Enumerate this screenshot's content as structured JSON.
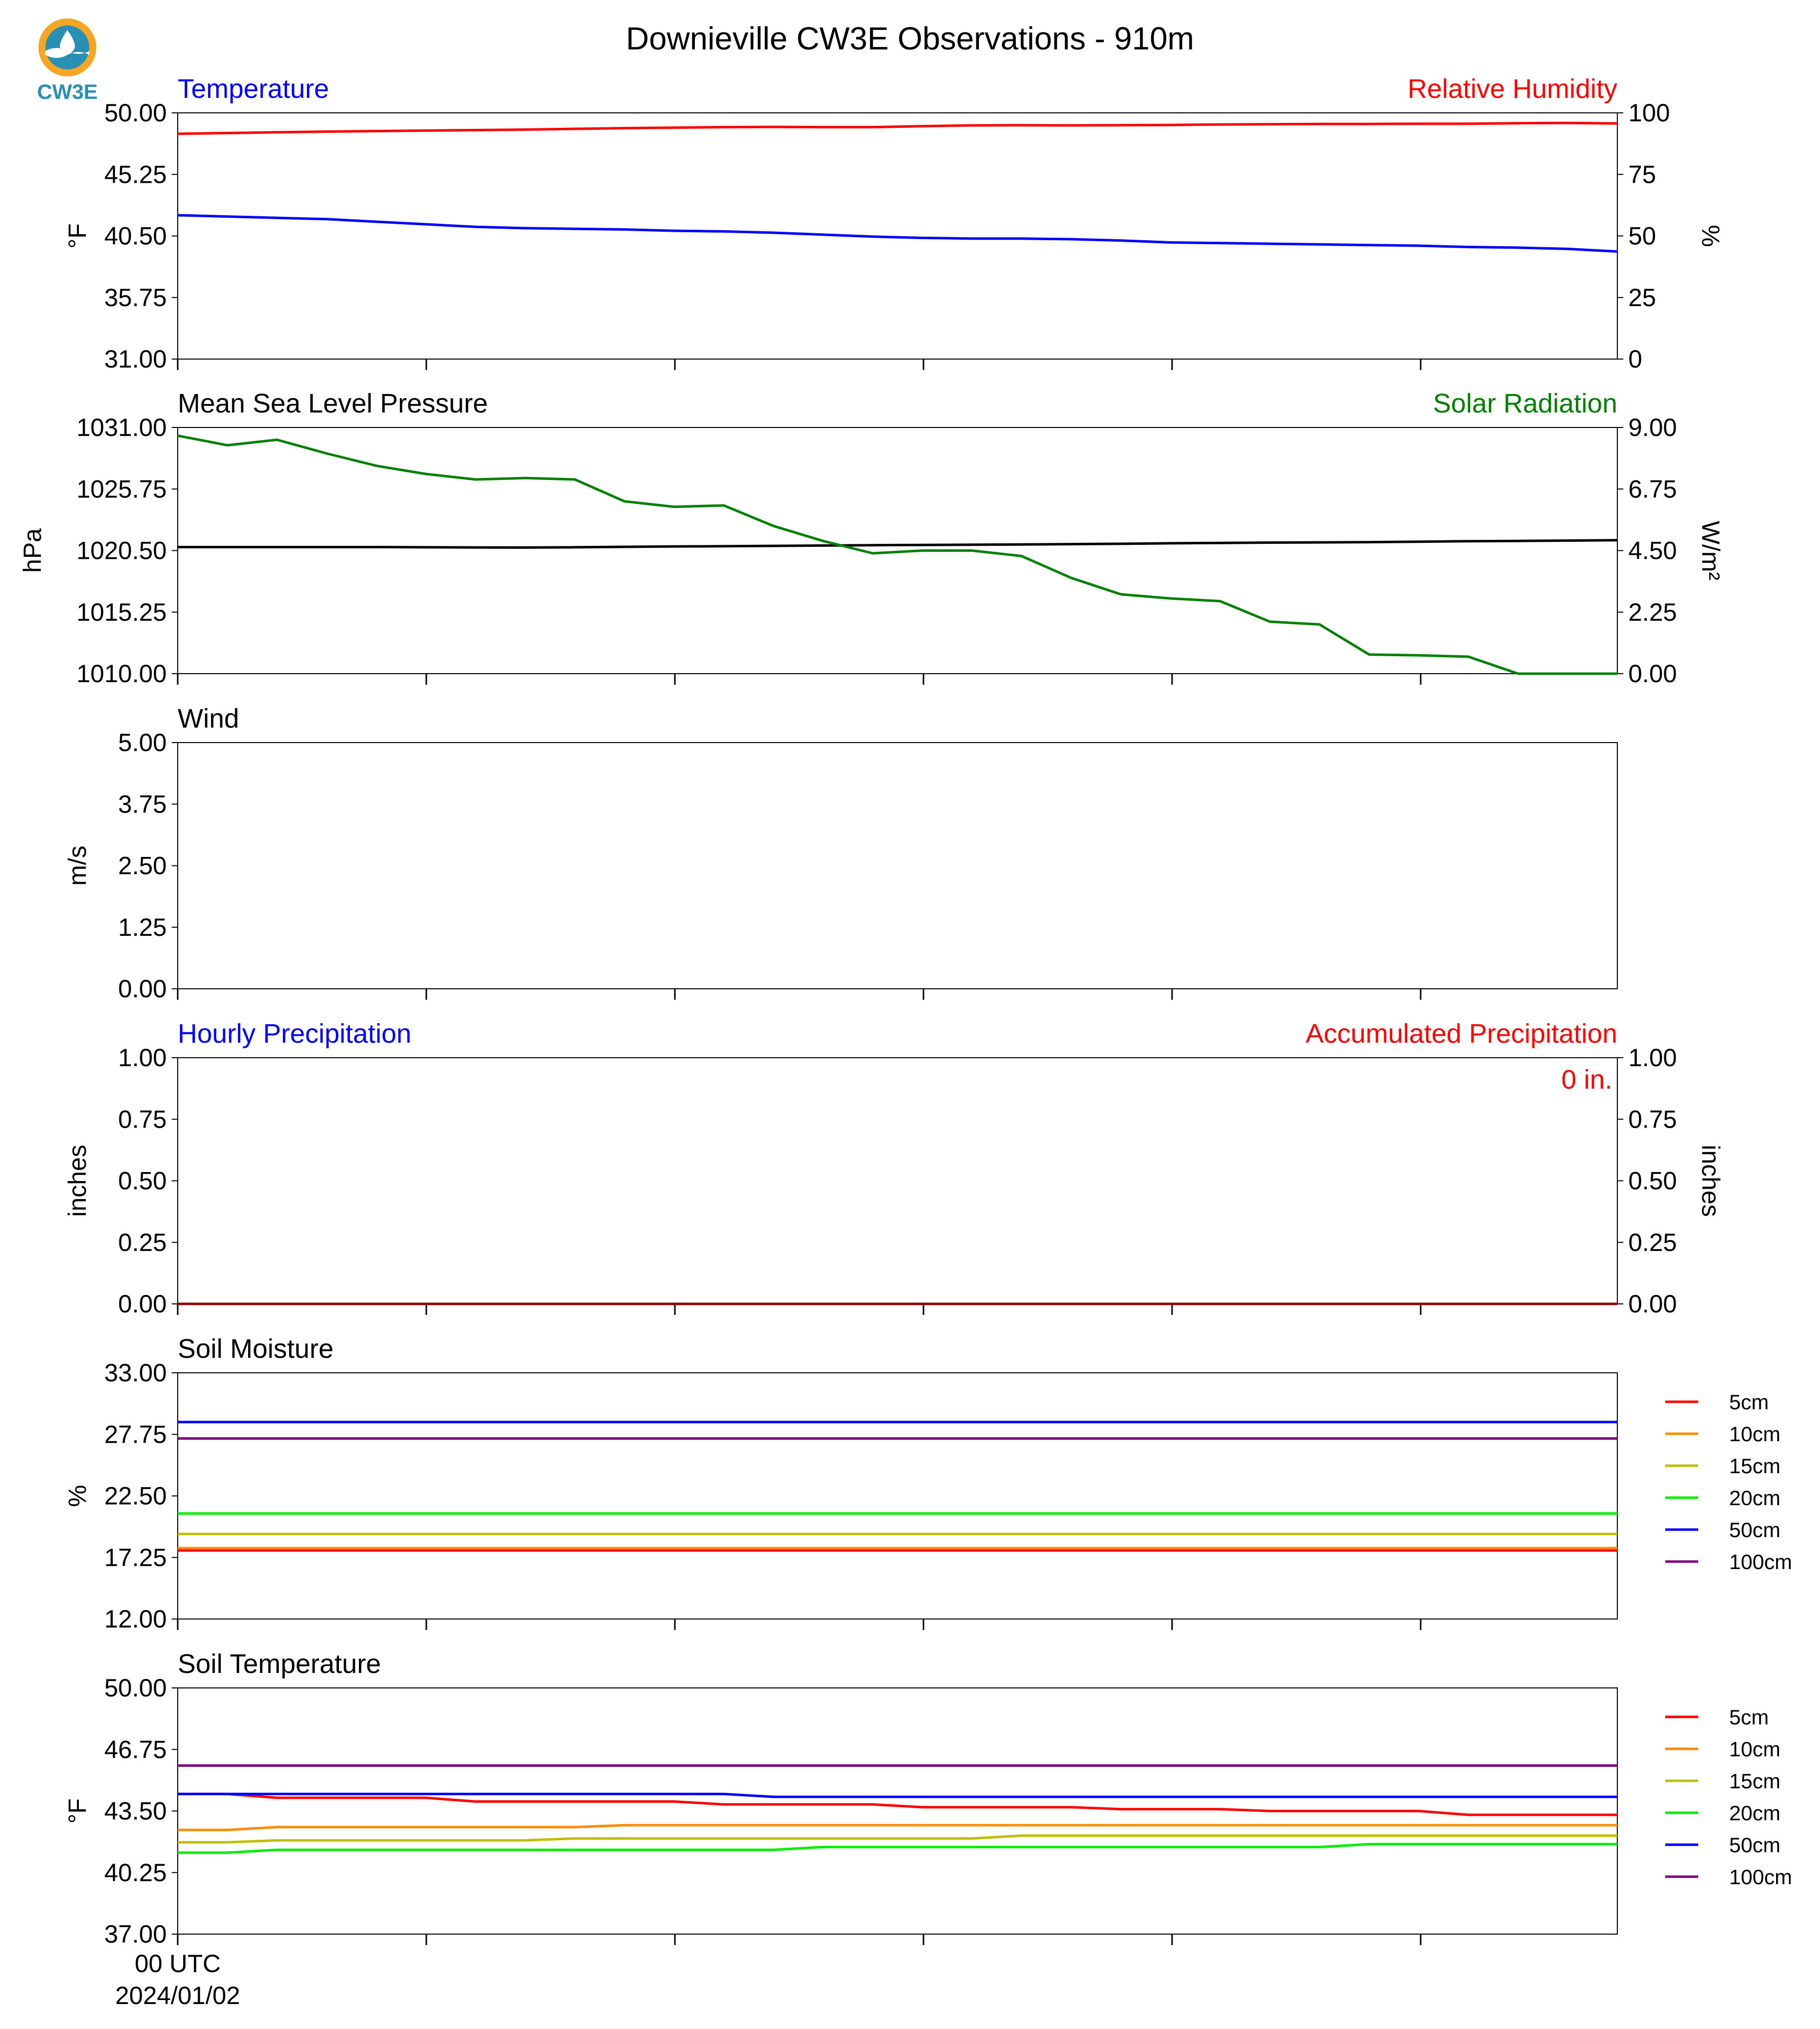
{
  "title": "Downieville CW3E Observations - 910m",
  "logo": {
    "text": "CW3E",
    "color": "#2a8fb5",
    "accent": "#f5a623"
  },
  "x_axis": {
    "tick_label_line1": "00 UTC",
    "tick_label_line2": "2024/01/02",
    "n_ticks": 6
  },
  "chart_data": [
    {
      "id": "temp-rh",
      "type": "line",
      "title_left": "Temperature",
      "title_left_color": "#0000ff",
      "title_right": "Relative Humidity",
      "title_right_color": "#ff0000",
      "ylabel": "°F",
      "ylabel_right": "%",
      "ylim": [
        31,
        50
      ],
      "yticks": [
        "31.00",
        "35.75",
        "40.50",
        "45.25",
        "50.00"
      ],
      "ylim_right": [
        0,
        100
      ],
      "yticks_right": [
        "0",
        "25",
        "50",
        "75",
        "100"
      ],
      "x": [
        0,
        1,
        2,
        3,
        4,
        5,
        6,
        7,
        8,
        9,
        10,
        11,
        12,
        13,
        14,
        15,
        16,
        17,
        18,
        19,
        20,
        21,
        22,
        23,
        24,
        25,
        26,
        27,
        28,
        29
      ],
      "series": [
        {
          "axis": "left",
          "color": "#0000ff",
          "values": [
            42.1,
            42.0,
            41.9,
            41.8,
            41.6,
            41.4,
            41.2,
            41.1,
            41.05,
            41.0,
            40.9,
            40.85,
            40.75,
            40.6,
            40.45,
            40.35,
            40.3,
            40.3,
            40.25,
            40.15,
            40.0,
            39.95,
            39.9,
            39.85,
            39.8,
            39.75,
            39.65,
            39.6,
            39.5,
            39.3
          ]
        },
        {
          "axis": "right",
          "color": "#ff0000",
          "values": [
            91.5,
            91.8,
            92.1,
            92.4,
            92.6,
            92.8,
            93.0,
            93.2,
            93.5,
            93.8,
            94.0,
            94.2,
            94.3,
            94.2,
            94.2,
            94.6,
            94.9,
            95.0,
            94.9,
            95.0,
            95.1,
            95.3,
            95.4,
            95.5,
            95.5,
            95.6,
            95.6,
            95.8,
            95.9,
            95.7
          ]
        }
      ]
    },
    {
      "id": "pressure-solar",
      "type": "line",
      "title_left": "Mean Sea Level Pressure",
      "title_left_color": "#000000",
      "title_right": "Solar Radiation",
      "title_right_color": "#008000",
      "ylabel": "hPa",
      "ylabel_right": "W/m²",
      "ylim": [
        1010,
        1031
      ],
      "yticks": [
        "1010.00",
        "1015.25",
        "1020.50",
        "1025.75",
        "1031.00"
      ],
      "ylim_right": [
        0,
        9
      ],
      "yticks_right": [
        "0.00",
        "2.25",
        "4.50",
        "6.75",
        "9.00"
      ],
      "x": [
        0,
        1,
        2,
        3,
        4,
        5,
        6,
        7,
        8,
        9,
        10,
        11,
        12,
        13,
        14,
        15,
        16,
        17,
        18,
        19,
        20,
        21,
        22,
        23,
        24,
        25,
        26,
        27,
        28,
        29
      ],
      "series": [
        {
          "axis": "left",
          "color": "#000000",
          "values": [
            1020.8,
            1020.8,
            1020.8,
            1020.8,
            1020.8,
            1020.78,
            1020.77,
            1020.76,
            1020.78,
            1020.82,
            1020.85,
            1020.87,
            1020.9,
            1020.93,
            1020.96,
            1020.98,
            1021.0,
            1021.02,
            1021.05,
            1021.08,
            1021.12,
            1021.15,
            1021.18,
            1021.2,
            1021.22,
            1021.26,
            1021.3,
            1021.32,
            1021.35,
            1021.38
          ]
        },
        {
          "axis": "right",
          "color": "#008000",
          "values": [
            8.7,
            8.35,
            8.55,
            8.05,
            7.6,
            7.3,
            7.1,
            7.15,
            7.1,
            6.3,
            6.1,
            6.15,
            5.4,
            4.85,
            4.4,
            4.5,
            4.5,
            4.3,
            3.5,
            2.9,
            2.75,
            2.65,
            1.9,
            1.8,
            0.7,
            0.67,
            0.62,
            0.0,
            0.0,
            0.0
          ]
        }
      ]
    },
    {
      "id": "wind",
      "type": "line",
      "title_left": "Wind",
      "title_left_color": "#000000",
      "ylabel": "m/s",
      "ylim": [
        0,
        5
      ],
      "yticks": [
        "0.00",
        "1.25",
        "2.50",
        "3.75",
        "5.00"
      ],
      "series": []
    },
    {
      "id": "precip",
      "type": "line",
      "title_left": "Hourly Precipitation",
      "title_left_color": "#0000ff",
      "title_right": "Accumulated Precipitation",
      "title_right_color": "#ff0000",
      "ylabel": "inches",
      "ylabel_right": "inches",
      "ylim": [
        0,
        1
      ],
      "yticks": [
        "0.00",
        "0.25",
        "0.50",
        "0.75",
        "1.00"
      ],
      "ylim_right": [
        0,
        1
      ],
      "yticks_right": [
        "0.00",
        "0.25",
        "0.50",
        "0.75",
        "1.00"
      ],
      "annotation": "0 in.",
      "annotation_color": "#ff0000",
      "x": [
        0,
        29
      ],
      "series": [
        {
          "axis": "left",
          "color": "#0000ff",
          "values": [
            0,
            0
          ]
        },
        {
          "axis": "right",
          "color": "#8b0000",
          "values": [
            0,
            0
          ]
        }
      ]
    },
    {
      "id": "soil-moisture",
      "type": "line",
      "title_left": "Soil Moisture",
      "title_left_color": "#000000",
      "ylabel": "%",
      "ylim": [
        12,
        33
      ],
      "yticks": [
        "12.00",
        "17.25",
        "22.50",
        "27.75",
        "33.00"
      ],
      "legend_position": "right",
      "x": [
        0,
        29
      ],
      "series": [
        {
          "name": "5cm",
          "color": "#ff0000",
          "values": [
            17.85,
            17.85
          ]
        },
        {
          "name": "10cm",
          "color": "#ff8c00",
          "values": [
            18.05,
            18.05
          ]
        },
        {
          "name": "15cm",
          "color": "#bfbf00",
          "values": [
            19.25,
            19.25
          ]
        },
        {
          "name": "20cm",
          "color": "#00ee00",
          "values": [
            21.0,
            21.0
          ]
        },
        {
          "name": "50cm",
          "color": "#0000ff",
          "values": [
            28.8,
            28.8
          ]
        },
        {
          "name": "100cm",
          "color": "#800080",
          "values": [
            27.4,
            27.4
          ]
        }
      ]
    },
    {
      "id": "soil-temperature",
      "type": "line",
      "title_left": "Soil Temperature",
      "title_left_color": "#000000",
      "ylabel": "°F",
      "ylim": [
        37,
        50
      ],
      "yticks": [
        "37.00",
        "40.25",
        "43.50",
        "46.75",
        "50.00"
      ],
      "legend_position": "right",
      "x": [
        0,
        1,
        2,
        3,
        4,
        5,
        6,
        7,
        8,
        9,
        10,
        11,
        12,
        13,
        14,
        15,
        16,
        17,
        18,
        19,
        20,
        21,
        22,
        23,
        24,
        25,
        26,
        27,
        28,
        29
      ],
      "series": [
        {
          "name": "5cm",
          "color": "#ff0000",
          "values": [
            44.4,
            44.4,
            44.2,
            44.2,
            44.2,
            44.2,
            44.0,
            44.0,
            44.0,
            44.0,
            44.0,
            43.85,
            43.85,
            43.85,
            43.85,
            43.7,
            43.7,
            43.7,
            43.7,
            43.6,
            43.6,
            43.6,
            43.5,
            43.5,
            43.5,
            43.5,
            43.3,
            43.3,
            43.3,
            43.3
          ]
        },
        {
          "name": "10cm",
          "color": "#ff8c00",
          "values": [
            42.5,
            42.5,
            42.65,
            42.65,
            42.65,
            42.65,
            42.65,
            42.65,
            42.65,
            42.75,
            42.75,
            42.75,
            42.75,
            42.75,
            42.75,
            42.75,
            42.75,
            42.75,
            42.75,
            42.75,
            42.75,
            42.75,
            42.75,
            42.75,
            42.75,
            42.75,
            42.75,
            42.75,
            42.75,
            42.75
          ]
        },
        {
          "name": "15cm",
          "color": "#bfbf00",
          "values": [
            41.85,
            41.85,
            41.95,
            41.95,
            41.95,
            41.95,
            41.95,
            41.95,
            42.05,
            42.05,
            42.05,
            42.05,
            42.05,
            42.05,
            42.05,
            42.05,
            42.05,
            42.2,
            42.2,
            42.2,
            42.2,
            42.2,
            42.2,
            42.2,
            42.2,
            42.2,
            42.2,
            42.2,
            42.2,
            42.2
          ]
        },
        {
          "name": "20cm",
          "color": "#00ee00",
          "values": [
            41.3,
            41.3,
            41.45,
            41.45,
            41.45,
            41.45,
            41.45,
            41.45,
            41.45,
            41.45,
            41.45,
            41.45,
            41.45,
            41.6,
            41.6,
            41.6,
            41.6,
            41.6,
            41.6,
            41.6,
            41.6,
            41.6,
            41.6,
            41.6,
            41.75,
            41.75,
            41.75,
            41.75,
            41.75,
            41.75
          ]
        },
        {
          "name": "50cm",
          "color": "#0000ff",
          "values": [
            44.4,
            44.4,
            44.4,
            44.4,
            44.4,
            44.4,
            44.4,
            44.4,
            44.4,
            44.4,
            44.4,
            44.4,
            44.25,
            44.25,
            44.25,
            44.25,
            44.25,
            44.25,
            44.25,
            44.25,
            44.25,
            44.25,
            44.25,
            44.25,
            44.25,
            44.25,
            44.25,
            44.25,
            44.25,
            44.25
          ]
        },
        {
          "name": "100cm",
          "color": "#800080",
          "values": [
            45.9,
            45.9,
            45.9,
            45.9,
            45.9,
            45.9,
            45.9,
            45.9,
            45.9,
            45.9,
            45.9,
            45.9,
            45.9,
            45.9,
            45.9,
            45.9,
            45.9,
            45.9,
            45.9,
            45.9,
            45.9,
            45.9,
            45.9,
            45.9,
            45.9,
            45.9,
            45.9,
            45.9,
            45.9,
            45.9
          ]
        }
      ]
    }
  ]
}
